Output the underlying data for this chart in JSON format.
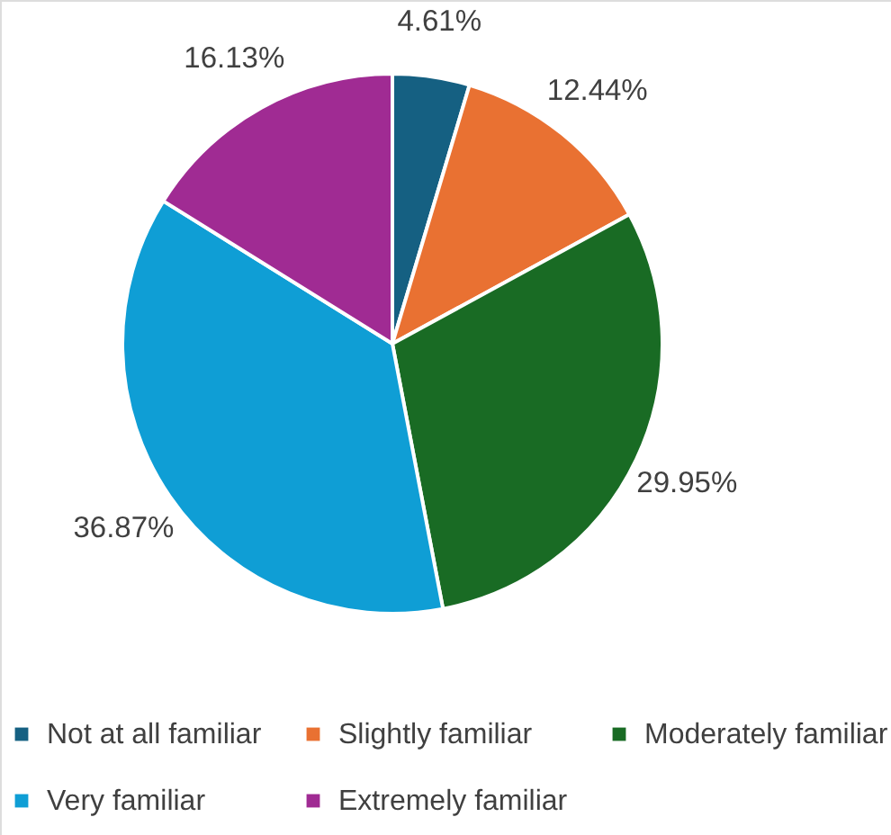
{
  "chart_data": {
    "type": "pie",
    "categories": [
      "Not at all familiar",
      "Slightly familiar",
      "Moderately familiar",
      "Very familiar",
      "Extremely familiar"
    ],
    "values": [
      4.61,
      12.44,
      29.95,
      36.87,
      16.13
    ],
    "colors": [
      "#156082",
      "#e97132",
      "#196b24",
      "#0f9ed5",
      "#a02b93"
    ],
    "value_labels": [
      "4.61%",
      "12.44%",
      "29.95%",
      "36.87%",
      "16.13%"
    ],
    "legend": "bottom"
  }
}
